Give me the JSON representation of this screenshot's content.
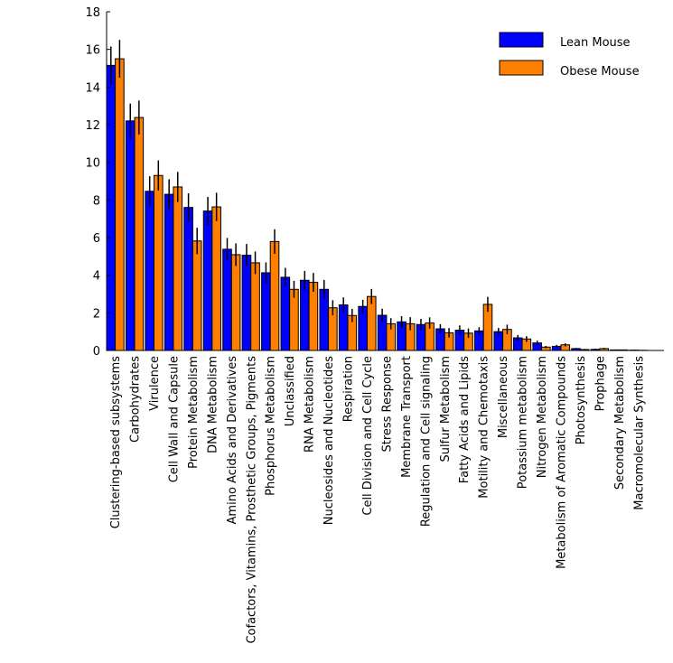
{
  "chart_data": {
    "type": "bar",
    "title": "",
    "xlabel": "",
    "ylabel": "",
    "ylim": [
      0,
      18
    ],
    "yticks": [
      0,
      2,
      4,
      6,
      8,
      10,
      12,
      14,
      16,
      18
    ],
    "grid": false,
    "legend_position": "top-right",
    "categories": [
      "Clustering-based subsystems",
      "Carbohydrates",
      "Virulence",
      "Cell Wall and Capsule",
      "Protein Metabolism",
      "DNA Metabolism",
      "Amino Acids and Derivatives",
      "Cofactors, Vitamins, Prosthetic Groups, Pigments",
      "Phosphorus Metabolism",
      "Unclassified",
      "RNA Metabolism",
      "Nucleosides and Nucleotides",
      "Respiration",
      "Cell Division and Cell Cycle",
      "Stress Response",
      "Membrane Transport",
      "Regulation and Cell signaling",
      "Sulfur Metabolism",
      "Fatty Acids and Lipids",
      "Motility and Chemotaxis",
      "Miscellaneous",
      "Potassium metabolism",
      "Nitrogen Metabolism",
      "Metabolism of Aromatic Compounds",
      "Photosynthesis",
      "Prophage",
      "Secondary Metabolism",
      "Macromolecular Synthesis"
    ],
    "series": [
      {
        "name": "Lean Mouse",
        "color": "#0000ff",
        "values": [
          15.15,
          12.2,
          8.46,
          8.3,
          7.6,
          7.41,
          5.38,
          5.06,
          4.13,
          3.89,
          3.73,
          3.25,
          2.42,
          2.34,
          1.87,
          1.52,
          1.38,
          1.15,
          1.08,
          1.04,
          1.0,
          0.67,
          0.4,
          0.22,
          0.1,
          0.06,
          0.03,
          0.02
        ],
        "errors": [
          1.0,
          0.92,
          0.8,
          0.8,
          0.75,
          0.75,
          0.6,
          0.6,
          0.55,
          0.5,
          0.5,
          0.5,
          0.4,
          0.35,
          0.35,
          0.3,
          0.3,
          0.25,
          0.25,
          0.2,
          0.2,
          0.15,
          0.12,
          0.08,
          0.04,
          0.03,
          0.02,
          0.02
        ]
      },
      {
        "name": "Obese Mouse",
        "color": "#ff7f00",
        "values": [
          15.5,
          12.38,
          9.3,
          8.69,
          5.82,
          7.63,
          5.09,
          4.66,
          5.79,
          3.25,
          3.62,
          2.27,
          1.86,
          2.87,
          1.42,
          1.42,
          1.46,
          0.94,
          0.92,
          2.45,
          1.12,
          0.61,
          0.18,
          0.3,
          0.05,
          0.1,
          0.03,
          0.01
        ],
        "errors": [
          1.0,
          0.9,
          0.8,
          0.8,
          0.7,
          0.75,
          0.6,
          0.6,
          0.65,
          0.45,
          0.5,
          0.4,
          0.35,
          0.4,
          0.3,
          0.35,
          0.3,
          0.25,
          0.25,
          0.4,
          0.25,
          0.15,
          0.06,
          0.08,
          0.03,
          0.04,
          0.02,
          0.02
        ]
      }
    ]
  }
}
